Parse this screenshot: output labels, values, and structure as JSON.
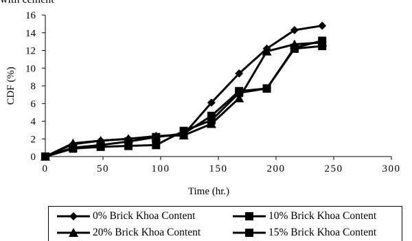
{
  "caption_fragment": "with cement",
  "chart_data": {
    "type": "line",
    "xlabel": "Time (hr.)",
    "ylabel": "CDF (%)",
    "xlim": [
      0,
      300
    ],
    "ylim": [
      0,
      16
    ],
    "x_ticks": [
      0,
      50,
      100,
      150,
      200,
      250,
      300
    ],
    "y_ticks": [
      0,
      2,
      4,
      6,
      8,
      10,
      12,
      14,
      16
    ],
    "grid": false,
    "legend_position": "bottom",
    "x": [
      0,
      24,
      48,
      72,
      96,
      120,
      144,
      168,
      192,
      216,
      240
    ],
    "series": [
      {
        "name": "0% Brick Khoa Content",
        "marker": "diamond",
        "values": [
          0,
          1.4,
          1.8,
          2.0,
          2.3,
          2.5,
          6.1,
          9.4,
          12.2,
          14.3,
          14.8
        ]
      },
      {
        "name": "10% Brick Khoa Content",
        "marker": "square",
        "values": [
          0,
          1.0,
          1.3,
          1.7,
          2.2,
          2.6,
          4.6,
          7.4,
          7.7,
          12.3,
          13.1
        ]
      },
      {
        "name": "20% Brick Khoa Content",
        "marker": "triangle",
        "values": [
          0,
          1.5,
          1.8,
          2.0,
          2.3,
          2.4,
          3.7,
          6.6,
          11.9,
          12.7,
          12.9
        ]
      },
      {
        "name": "15% Brick Khoa Content",
        "marker": "square",
        "values": [
          0,
          0.9,
          1.1,
          1.2,
          1.3,
          2.9,
          4.1,
          7.2,
          7.7,
          12.2,
          12.5
        ]
      }
    ]
  }
}
